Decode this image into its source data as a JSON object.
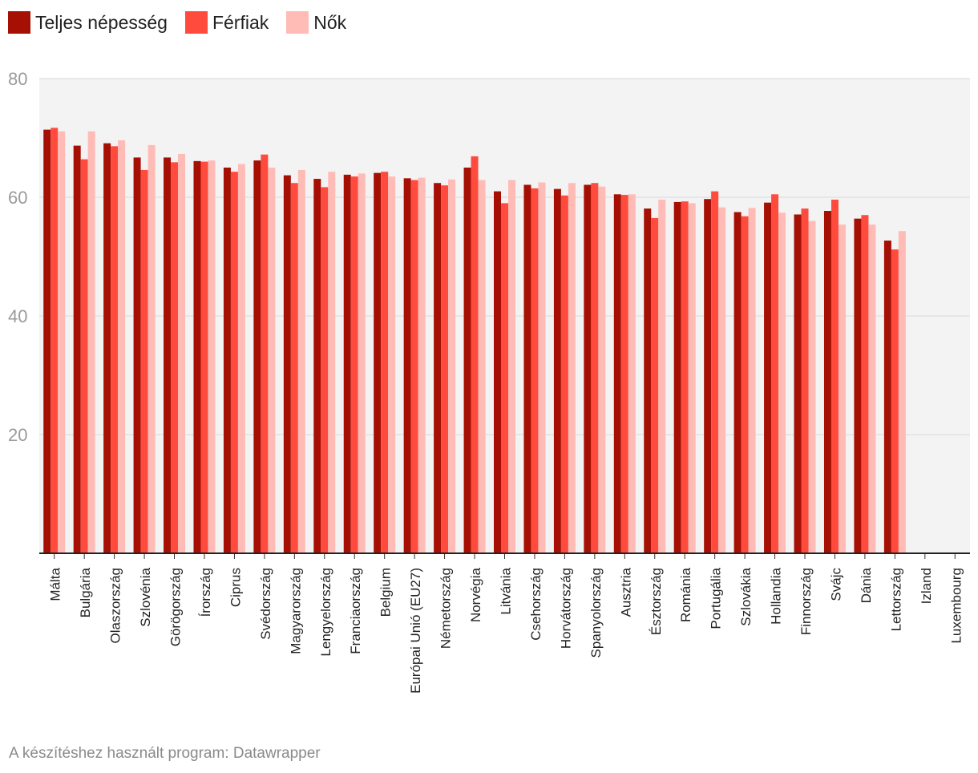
{
  "chart_data": {
    "type": "bar",
    "title": "",
    "xlabel": "",
    "ylabel": "",
    "ylim": [
      0,
      80
    ],
    "yticks": [
      20,
      40,
      60,
      80
    ],
    "grid": true,
    "legend_position": "top-left",
    "categories": [
      "Málta",
      "Bulgária",
      "Olaszország",
      "Szlovénia",
      "Görögország",
      "Írország",
      "Ciprus",
      "Svédország",
      "Magyarország",
      "Lengyelország",
      "Franciaország",
      "Belgium",
      "Európai Unió (EU27)",
      "Németország",
      "Norvégia",
      "Litvánia",
      "Csehország",
      "Horvátország",
      "Spanyolország",
      "Ausztria",
      "Észtország",
      "Románia",
      "Portugália",
      "Szlovákia",
      "Hollandia",
      "Finnország",
      "Svájc",
      "Dánia",
      "Lettország",
      "Izland",
      "Luxembourg"
    ],
    "series": [
      {
        "name": "Teljes népesség",
        "color": "#a50f04",
        "values": [
          71.4,
          68.7,
          69.1,
          66.7,
          66.7,
          66.1,
          65.0,
          66.2,
          63.7,
          63.1,
          63.8,
          64.1,
          63.2,
          62.4,
          65.0,
          61.0,
          62.1,
          61.4,
          62.1,
          60.5,
          58.1,
          59.2,
          59.7,
          57.5,
          59.1,
          57.1,
          57.7,
          56.4,
          52.7,
          null,
          null
        ]
      },
      {
        "name": "Férfiak",
        "color": "#ff4b3e",
        "values": [
          71.7,
          66.4,
          68.6,
          64.6,
          65.9,
          66.0,
          64.3,
          67.2,
          62.4,
          61.7,
          63.5,
          64.3,
          62.9,
          62.0,
          66.9,
          59.0,
          61.5,
          60.3,
          62.4,
          60.4,
          56.5,
          59.3,
          61.0,
          56.8,
          60.5,
          58.1,
          59.6,
          57.0,
          51.2,
          null,
          null
        ]
      },
      {
        "name": "Nők",
        "color": "#ffbcb7",
        "values": [
          71.1,
          71.1,
          69.6,
          68.8,
          67.3,
          66.2,
          65.6,
          65.0,
          64.6,
          64.3,
          64.0,
          63.5,
          63.3,
          63.0,
          62.9,
          62.9,
          62.5,
          62.4,
          61.8,
          60.5,
          59.6,
          59.0,
          58.3,
          58.2,
          57.4,
          56.0,
          55.4,
          55.4,
          54.3,
          null,
          null
        ]
      }
    ]
  },
  "footer": {
    "credit": "A készítéshez használt program: Datawrapper"
  }
}
